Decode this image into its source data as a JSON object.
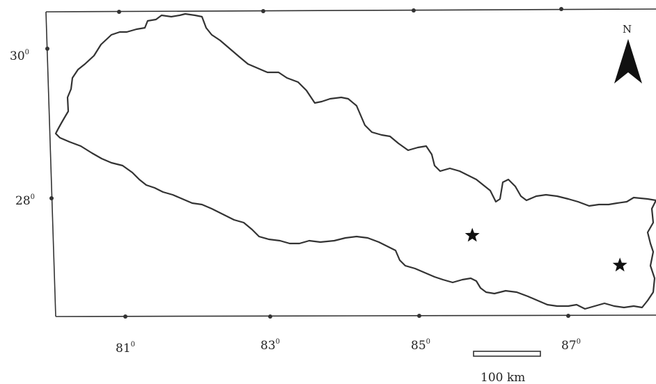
{
  "map": {
    "north_label": "N",
    "latitude_labels": [
      {
        "deg": "30",
        "sup": "0"
      },
      {
        "deg": "28",
        "sup": "0"
      }
    ],
    "longitude_labels": [
      {
        "deg": "81",
        "sup": "0"
      },
      {
        "deg": "83",
        "sup": "0"
      },
      {
        "deg": "85",
        "sup": "0"
      },
      {
        "deg": "87",
        "sup": "0"
      }
    ],
    "scale_bar_label": "100 km",
    "site_markers": [
      {
        "name": "site-1",
        "lon": 85.7,
        "lat": 27.5
      },
      {
        "name": "site-2",
        "lon": 87.7,
        "lat": 27.1
      }
    ],
    "colors": {
      "ink": "#222222",
      "background": "#ffffff"
    },
    "icons": {
      "north_arrow": "north-arrow-icon",
      "marker": "star-icon"
    }
  }
}
